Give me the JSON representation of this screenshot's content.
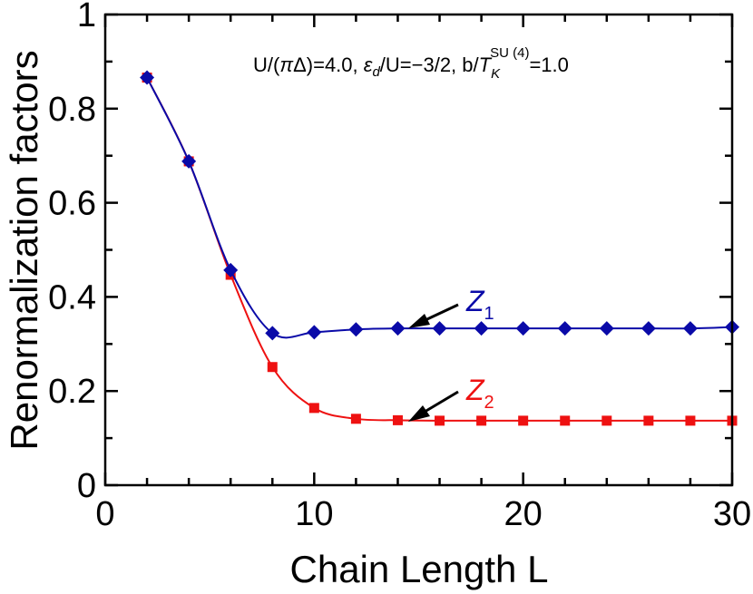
{
  "chart_data": {
    "type": "line",
    "xlabel": "Chain Length L",
    "ylabel": "Renormalization factors",
    "xlim": [
      0,
      30
    ],
    "ylim": [
      0,
      1
    ],
    "xticks": [
      0,
      10,
      20,
      30
    ],
    "yticks": [
      0,
      0.2,
      0.4,
      0.6,
      0.8,
      1
    ],
    "ytick_labels": [
      "0",
      "0.2",
      "0.4",
      "0.6",
      "0.8",
      "1"
    ],
    "xtick_labels": [
      "0",
      "10",
      "20",
      "30"
    ],
    "annotation": {
      "prefix": "U/(",
      "pi": "π",
      "middle": "Δ)=4.0, ",
      "epsilon": "ε",
      "eps_sub": "d",
      "after_eps": "/U=−3/2, b/",
      "T": "T",
      "T_sub": "K",
      "T_sup": "SU (4)",
      "suffix": "=1.0"
    },
    "series": [
      {
        "name": "Z",
        "subscript": "1",
        "color": "#0a0aa8",
        "marker": "diamond",
        "x": [
          2,
          4,
          6,
          8,
          10,
          12,
          14,
          16,
          18,
          20,
          22,
          24,
          26,
          28,
          30
        ],
        "values": [
          0.866,
          0.688,
          0.457,
          0.323,
          0.325,
          0.331,
          0.333,
          0.333,
          0.333,
          0.333,
          0.333,
          0.333,
          0.333,
          0.333,
          0.336
        ]
      },
      {
        "name": "Z",
        "subscript": "2",
        "color": "#ee1111",
        "marker": "square",
        "x": [
          2,
          4,
          6,
          8,
          10,
          12,
          14,
          16,
          18,
          20,
          22,
          24,
          26,
          28,
          30
        ],
        "values": [
          0.866,
          0.688,
          0.447,
          0.251,
          0.164,
          0.141,
          0.138,
          0.137,
          0.137,
          0.137,
          0.137,
          0.137,
          0.137,
          0.137,
          0.137
        ]
      }
    ]
  }
}
